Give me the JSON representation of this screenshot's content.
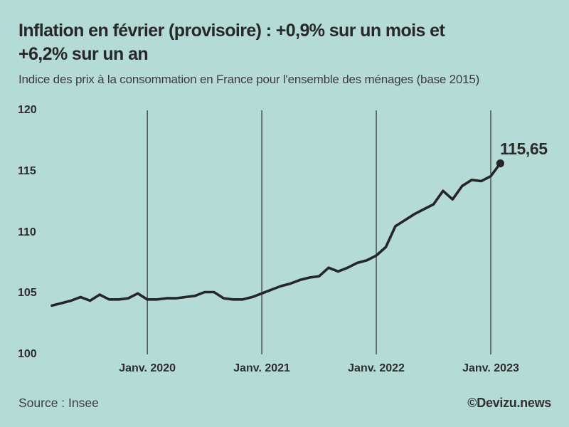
{
  "header": {
    "title_lines": [
      "Inflation en février (provisoire) : +0,9% sur un mois et",
      "+6,2% sur un an"
    ],
    "subtitle": "Indice des prix à la consommation en France pour l'ensemble des ménages (base 2015)"
  },
  "chart_data": {
    "type": "line",
    "title": "Inflation en février (provisoire) : +0,9% sur un mois et +6,2% sur un an",
    "subtitle": "Indice des prix à la consommation en France pour l'ensemble des ménages (base 2015)",
    "x": [
      "2019-03",
      "2019-04",
      "2019-05",
      "2019-06",
      "2019-07",
      "2019-08",
      "2019-09",
      "2019-10",
      "2019-11",
      "2019-12",
      "2020-01",
      "2020-02",
      "2020-03",
      "2020-04",
      "2020-05",
      "2020-06",
      "2020-07",
      "2020-08",
      "2020-09",
      "2020-10",
      "2020-11",
      "2020-12",
      "2021-01",
      "2021-02",
      "2021-03",
      "2021-04",
      "2021-05",
      "2021-06",
      "2021-07",
      "2021-08",
      "2021-09",
      "2021-10",
      "2021-11",
      "2021-12",
      "2022-01",
      "2022-02",
      "2022-03",
      "2022-04",
      "2022-05",
      "2022-06",
      "2022-07",
      "2022-08",
      "2022-09",
      "2022-10",
      "2022-11",
      "2022-12",
      "2023-01",
      "2023-02"
    ],
    "values": [
      104.0,
      104.2,
      104.4,
      104.7,
      104.4,
      104.9,
      104.5,
      104.5,
      104.6,
      105.0,
      104.5,
      104.5,
      104.6,
      104.6,
      104.7,
      104.8,
      105.1,
      105.1,
      104.6,
      104.5,
      104.5,
      104.7,
      105.0,
      105.3,
      105.6,
      105.8,
      106.1,
      106.3,
      106.4,
      107.1,
      106.8,
      107.1,
      107.5,
      107.7,
      108.1,
      108.8,
      110.5,
      111.0,
      111.5,
      111.9,
      112.3,
      113.4,
      112.7,
      113.8,
      114.3,
      114.2,
      114.6,
      115.65
    ],
    "ylim": [
      100,
      120
    ],
    "y_ticks": [
      120,
      115,
      110,
      105,
      100
    ],
    "x_ticks": [
      {
        "label": "Janv. 2020",
        "x_index": 10
      },
      {
        "label": "Janv. 2021",
        "x_index": 22
      },
      {
        "label": "Janv. 2022",
        "x_index": 34
      },
      {
        "label": "Janv. 2023",
        "x_index": 46
      }
    ],
    "annotation": {
      "label": "115,65",
      "value": 115.65,
      "x": "2023-02",
      "x_index": 47
    },
    "grid": "vertical-only",
    "legend": "none",
    "line_color": "#262626",
    "grid_color": "#2f2f2f",
    "background": "#b4dbd6"
  },
  "footer": {
    "source": "Source : Insee",
    "credit": "©Devizu.news"
  }
}
